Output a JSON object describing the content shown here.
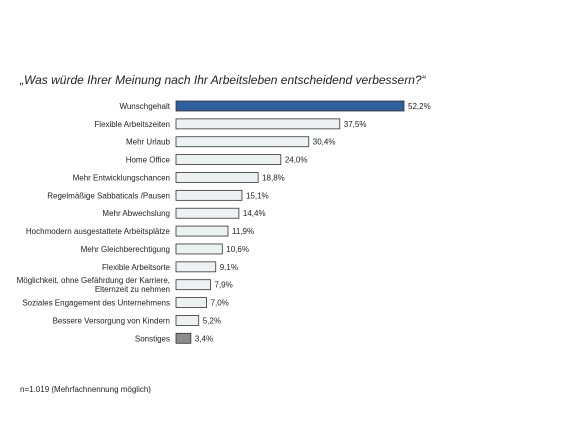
{
  "chart_data": {
    "type": "bar",
    "orientation": "horizontal",
    "title": "„Was würde Ihrer Meinung nach Ihr Arbeitsleben entscheidend verbessern?“",
    "categories": [
      [
        "Wunschgehalt"
      ],
      [
        "Flexible Arbeitszeiten"
      ],
      [
        "Mehr Urlaub"
      ],
      [
        "Home Office"
      ],
      [
        "Mehr Entwicklungschancen"
      ],
      [
        "Regelmäßige Sabbaticals /Pausen"
      ],
      [
        "Mehr Abwechslung"
      ],
      [
        "Hochmodern  ausgestattete Arbeitsplätze"
      ],
      [
        "Mehr Gleichberechtigung"
      ],
      [
        "Flexible Arbeitsorte"
      ],
      [
        "Möglichkeit,  ohne Gefährdung  der Karriere,",
        "Elternzeit zu nehmen"
      ],
      [
        "Soziales Engagement  des Unternehmens"
      ],
      [
        "Bessere Versorgung  von Kindern"
      ],
      [
        "Sonstiges"
      ]
    ],
    "values": [
      52.2,
      37.5,
      30.4,
      24.0,
      18.8,
      15.1,
      14.4,
      11.9,
      10.6,
      9.1,
      7.9,
      7.0,
      5.2,
      3.4
    ],
    "data_labels": [
      "52,2%",
      "37,5%",
      "30,4%",
      "24,0%",
      "18,8%",
      "15,1%",
      "14,4%",
      "11,9%",
      "10,6%",
      "9,1%",
      "7,9%",
      "7,0%",
      "5,2%",
      "3,4%"
    ],
    "bar_styles": [
      "highlight",
      "normal",
      "normal",
      "normal",
      "normal",
      "normal",
      "normal",
      "normal",
      "normal",
      "normal",
      "normal",
      "normal",
      "normal",
      "other"
    ],
    "colors": {
      "highlight": "#2e5f9e",
      "normal": "#eef1f1",
      "other": "#8c8c8c",
      "stroke": "#333333"
    },
    "xlim": [
      0,
      52.2
    ],
    "grid": false,
    "legend": "none"
  },
  "footnote": "n=1.019  (Mehrfachnennung  möglich)"
}
